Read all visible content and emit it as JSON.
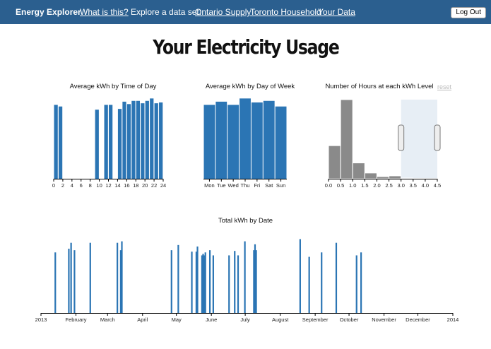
{
  "nav": {
    "brand": "Energy Explorer",
    "what_is_this": "What is this?",
    "explore_label": "Explore a data set:",
    "datasets": [
      "Ontario Supply",
      "Toronto Household",
      "Your Data"
    ],
    "logout": "Log Out"
  },
  "page_title": "Your Electricity Usage",
  "colors": {
    "nav_bg": "#2b5f8f",
    "bar": "#2b75b4",
    "histogram": "#8a8a8a",
    "brush": "#dfe8f1"
  },
  "reset_label": "reset",
  "chart_data": [
    {
      "id": "time_of_day",
      "type": "bar",
      "title": "Average kWh by Time of Day",
      "x": [
        0,
        1,
        2,
        3,
        4,
        5,
        6,
        7,
        8,
        9,
        10,
        11,
        12,
        13,
        14,
        15,
        16,
        17,
        18,
        19,
        20,
        21,
        22,
        23
      ],
      "values": [
        0.92,
        0.9,
        0,
        0,
        0,
        0,
        0,
        0,
        0,
        0.86,
        0,
        0.92,
        0.92,
        0,
        0.87,
        0.96,
        0.93,
        0.97,
        0.97,
        0.94,
        0.97,
        1.0,
        0.94,
        0.95
      ],
      "ylim": [
        0,
        1.1
      ],
      "xticks": [
        "0",
        "2",
        "4",
        "6",
        "8",
        "10",
        "12",
        "14",
        "16",
        "18",
        "20",
        "22",
        "24"
      ]
    },
    {
      "id": "day_of_week",
      "type": "bar",
      "title": "Average kWh by Day of Week",
      "categories": [
        "Mon",
        "Tue",
        "Wed",
        "Thu",
        "Fri",
        "Sat",
        "Sun"
      ],
      "values": [
        0.92,
        0.96,
        0.92,
        1.0,
        0.95,
        0.97,
        0.9
      ],
      "ylim": [
        0,
        1.1
      ],
      "xticks": [
        "Mon",
        "Tue",
        "Wed",
        "Thu",
        "Fri",
        "Sat",
        "Sun"
      ]
    },
    {
      "id": "kwh_level",
      "type": "bar",
      "title": "Number of Hours at each kWh Level",
      "bins": [
        0.0,
        0.5,
        1.0,
        1.5,
        2.0,
        2.5,
        3.0,
        3.5,
        4.0
      ],
      "bin_width": 0.5,
      "values": [
        46,
        110,
        22,
        8,
        3,
        4,
        1,
        0.5,
        0.3
      ],
      "ylim": [
        0,
        110
      ],
      "brush": [
        3.0,
        4.5
      ],
      "xticks": [
        "0.0",
        "0.5",
        "1.0",
        "1.5",
        "2.0",
        "2.5",
        "3.0",
        "3.5",
        "4.0",
        "4.5"
      ]
    },
    {
      "id": "by_date",
      "type": "bar",
      "title": "Total kWh by Date",
      "x_months": [
        "2013",
        "February",
        "March",
        "April",
        "May",
        "June",
        "July",
        "August",
        "September",
        "October",
        "November",
        "December",
        "2014"
      ],
      "days": [
        12,
        24,
        26,
        29,
        43,
        67,
        70,
        71,
        115,
        121,
        133,
        137,
        138,
        142,
        143,
        144,
        145,
        149,
        152,
        166,
        171,
        174,
        180,
        188,
        189,
        190,
        229,
        237,
        248,
        261,
        279,
        283
      ],
      "values": [
        0.82,
        0.87,
        0.95,
        0.85,
        0.95,
        0.95,
        0.85,
        0.97,
        0.85,
        0.92,
        0.83,
        0.83,
        0.9,
        0.78,
        0.8,
        0.78,
        0.82,
        0.85,
        0.78,
        0.78,
        0.84,
        0.78,
        0.97,
        0.85,
        0.93,
        0.85,
        1.0,
        0.76,
        0.82,
        0.95,
        0.78,
        0.82
      ],
      "ylim": [
        0,
        1.1
      ]
    }
  ]
}
